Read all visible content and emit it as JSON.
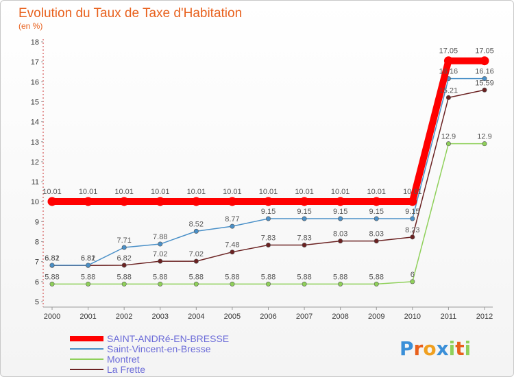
{
  "chart_data": {
    "type": "line",
    "title": "Evolution du Taux de Taxe d'Habitation",
    "subtitle": "(en %)",
    "xlabel": "",
    "ylabel": "",
    "categories": [
      "2000",
      "2001",
      "2002",
      "2003",
      "2004",
      "2005",
      "2006",
      "2007",
      "2008",
      "2009",
      "2010",
      "2011",
      "2012"
    ],
    "ylim": [
      5,
      18
    ],
    "yticks": [
      5,
      6,
      7,
      8,
      9,
      10,
      11,
      12,
      13,
      14,
      15,
      16,
      17,
      18
    ],
    "grid": false,
    "legend_position": "bottom-left",
    "series": [
      {
        "name": "SAINT-ANDRé-EN-BRESSE",
        "color": "#ff0000",
        "values": [
          10.01,
          10.01,
          10.01,
          10.01,
          10.01,
          10.01,
          10.01,
          10.01,
          10.01,
          10.01,
          10.01,
          17.05,
          17.05
        ],
        "labels": [
          "10.01",
          "10.01",
          "10.01",
          "10.01",
          "10.01",
          "10.01",
          "10.01",
          "10.01",
          "10.01",
          "10.01",
          "10.01",
          "17.05",
          "17.05"
        ]
      },
      {
        "name": "Saint-Vincent-en-Bresse",
        "color": "#4a90c8",
        "values": [
          6.82,
          6.82,
          7.71,
          7.88,
          8.52,
          8.77,
          9.15,
          9.15,
          9.15,
          9.15,
          9.15,
          16.16,
          16.16
        ],
        "labels": [
          "6.82",
          "6.82",
          "7.71",
          "7.88",
          "8.52",
          "8.77",
          "9.15",
          "9.15",
          "9.15",
          "9.15",
          "9.15",
          "16.16",
          "16.16"
        ]
      },
      {
        "name": "Montret",
        "color": "#8fd05a",
        "values": [
          5.88,
          5.88,
          5.88,
          5.88,
          5.88,
          5.88,
          5.88,
          5.88,
          5.88,
          5.88,
          6,
          12.9,
          12.9
        ],
        "labels": [
          "5.88",
          "5.88",
          "5.88",
          "5.88",
          "5.88",
          "5.88",
          "5.88",
          "5.88",
          "5.88",
          "5.88",
          "6",
          "12.9",
          "12.9"
        ]
      },
      {
        "name": "La Frette",
        "color": "#6b2222",
        "values": [
          6.81,
          6.81,
          6.82,
          7.02,
          7.02,
          7.48,
          7.83,
          7.83,
          8.03,
          8.03,
          8.23,
          15.21,
          15.59
        ],
        "labels": [
          "6.81",
          "6.81",
          "6.82",
          "7.02",
          "7.02",
          "7.48",
          "7.83",
          "7.83",
          "8.03",
          "8.03",
          "8.23",
          "15.21",
          "15.59"
        ]
      }
    ]
  },
  "logo": {
    "letters": [
      "P",
      "r",
      "o",
      "x",
      "i",
      "t",
      "i"
    ],
    "colors": [
      "#3a8fd8",
      "#e8601c",
      "#f0a020",
      "#3a8fd8",
      "#8fd05a",
      "#e8601c",
      "#8fd05a"
    ]
  }
}
